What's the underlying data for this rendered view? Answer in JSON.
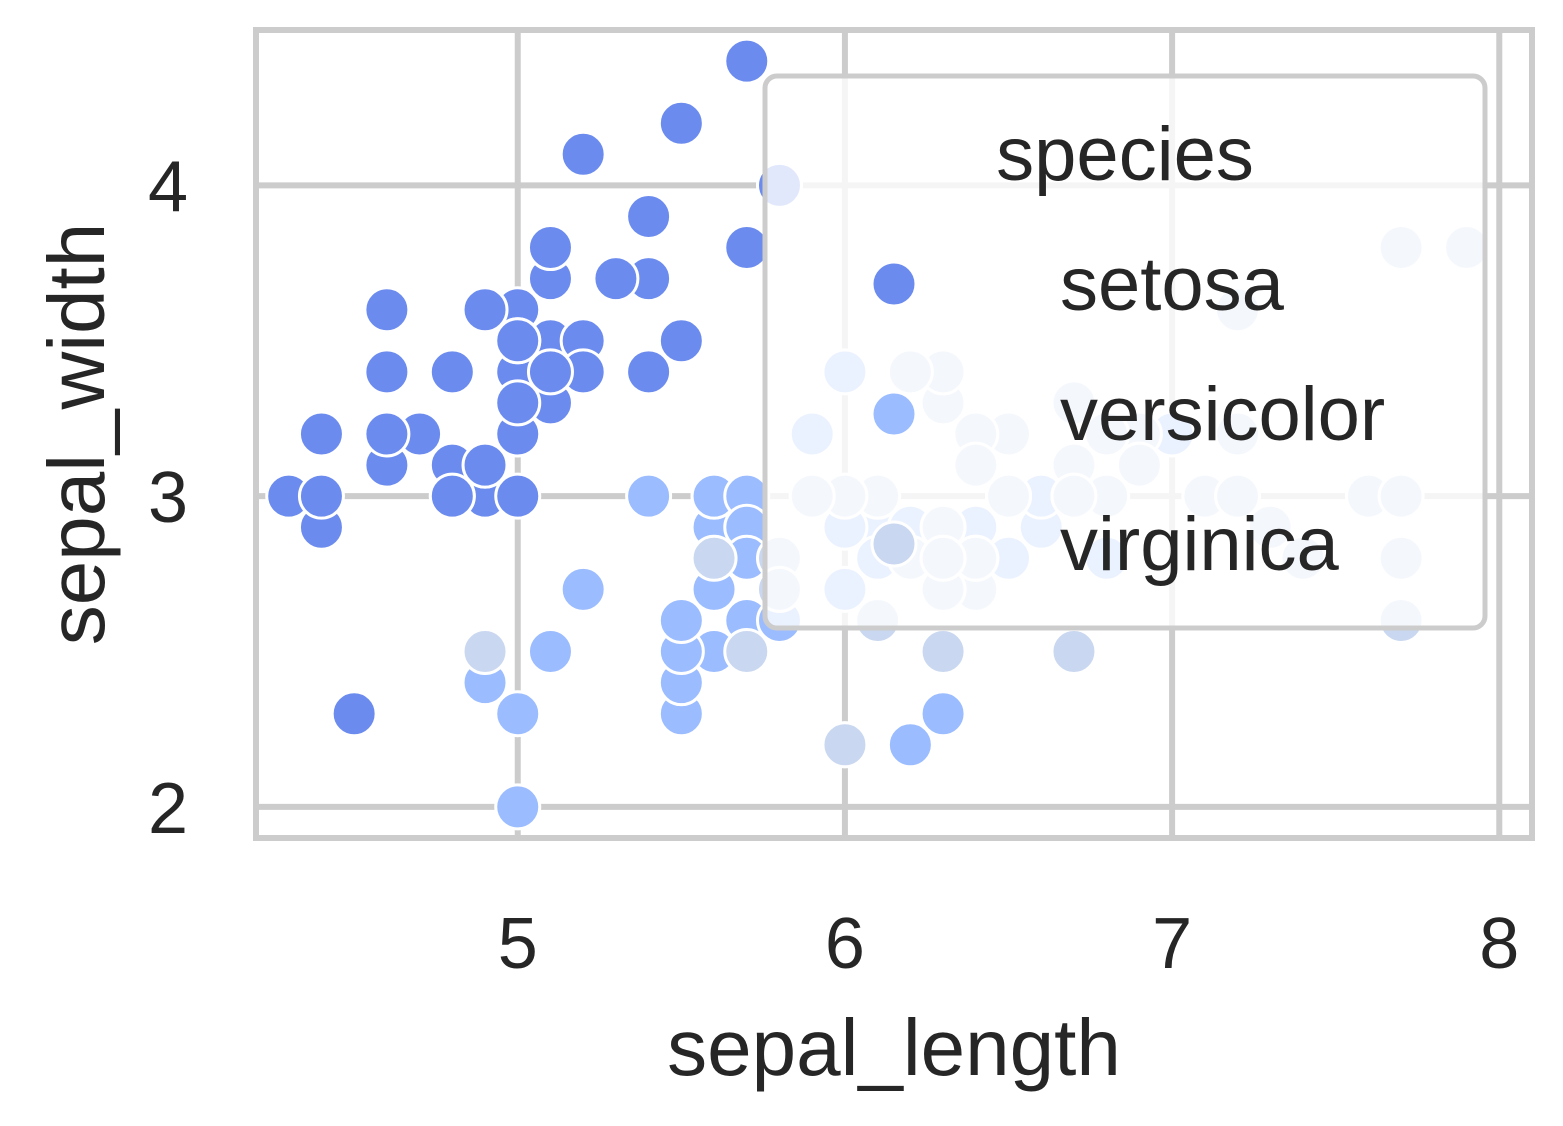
{
  "chart_data": {
    "type": "scatter",
    "xlabel": "sepal_length",
    "ylabel": "sepal_width",
    "xlim": [
      4.2,
      8.1
    ],
    "ylim": [
      1.9,
      4.5
    ],
    "xticks": [
      5,
      6,
      7,
      8
    ],
    "yticks": [
      2,
      3,
      4
    ],
    "grid": true,
    "legend": {
      "title": "species",
      "placement": "upper-right"
    },
    "series": [
      {
        "name": "setosa",
        "color": "#6b8bee",
        "points": [
          [
            5.1,
            3.5
          ],
          [
            4.9,
            3.0
          ],
          [
            4.7,
            3.2
          ],
          [
            4.6,
            3.1
          ],
          [
            5.0,
            3.6
          ],
          [
            5.4,
            3.9
          ],
          [
            4.6,
            3.4
          ],
          [
            5.0,
            3.4
          ],
          [
            4.4,
            2.9
          ],
          [
            4.9,
            3.1
          ],
          [
            5.4,
            3.7
          ],
          [
            4.8,
            3.4
          ],
          [
            4.8,
            3.0
          ],
          [
            4.3,
            3.0
          ],
          [
            5.8,
            4.0
          ],
          [
            5.7,
            4.4
          ],
          [
            5.4,
            3.9
          ],
          [
            5.1,
            3.5
          ],
          [
            5.7,
            3.8
          ],
          [
            5.1,
            3.8
          ],
          [
            5.4,
            3.4
          ],
          [
            5.1,
            3.7
          ],
          [
            4.6,
            3.6
          ],
          [
            5.1,
            3.3
          ],
          [
            4.8,
            3.4
          ],
          [
            5.0,
            3.0
          ],
          [
            5.0,
            3.4
          ],
          [
            5.2,
            3.5
          ],
          [
            5.2,
            3.4
          ],
          [
            4.7,
            3.2
          ],
          [
            4.8,
            3.1
          ],
          [
            5.4,
            3.4
          ],
          [
            5.2,
            4.1
          ],
          [
            5.5,
            4.2
          ],
          [
            4.9,
            3.1
          ],
          [
            5.0,
            3.2
          ],
          [
            5.5,
            3.5
          ],
          [
            4.9,
            3.6
          ],
          [
            4.4,
            3.0
          ],
          [
            5.1,
            3.4
          ],
          [
            5.0,
            3.5
          ],
          [
            4.5,
            2.3
          ],
          [
            4.4,
            3.2
          ],
          [
            5.0,
            3.5
          ],
          [
            5.1,
            3.8
          ],
          [
            4.8,
            3.0
          ],
          [
            5.1,
            3.8
          ],
          [
            4.6,
            3.2
          ],
          [
            5.3,
            3.7
          ],
          [
            5.0,
            3.3
          ]
        ]
      },
      {
        "name": "versicolor",
        "color": "#9bbcff",
        "points": [
          [
            7.0,
            3.2
          ],
          [
            6.4,
            3.2
          ],
          [
            6.9,
            3.1
          ],
          [
            5.5,
            2.3
          ],
          [
            6.5,
            2.8
          ],
          [
            5.7,
            2.8
          ],
          [
            6.3,
            3.3
          ],
          [
            4.9,
            2.4
          ],
          [
            6.6,
            2.9
          ],
          [
            5.2,
            2.7
          ],
          [
            5.0,
            2.0
          ],
          [
            5.9,
            3.0
          ],
          [
            6.0,
            2.2
          ],
          [
            6.1,
            2.9
          ],
          [
            5.6,
            2.9
          ],
          [
            6.7,
            3.1
          ],
          [
            5.6,
            3.0
          ],
          [
            5.8,
            2.7
          ],
          [
            6.2,
            2.2
          ],
          [
            5.6,
            2.5
          ],
          [
            5.9,
            3.2
          ],
          [
            6.1,
            2.8
          ],
          [
            6.3,
            2.5
          ],
          [
            6.1,
            2.8
          ],
          [
            6.4,
            2.9
          ],
          [
            6.6,
            3.0
          ],
          [
            6.8,
            2.8
          ],
          [
            6.7,
            3.0
          ],
          [
            6.0,
            2.9
          ],
          [
            5.7,
            2.6
          ],
          [
            5.5,
            2.4
          ],
          [
            5.5,
            2.4
          ],
          [
            5.8,
            2.7
          ],
          [
            6.0,
            2.7
          ],
          [
            5.4,
            3.0
          ],
          [
            6.0,
            3.4
          ],
          [
            6.7,
            3.1
          ],
          [
            6.3,
            2.3
          ],
          [
            5.6,
            3.0
          ],
          [
            5.5,
            2.5
          ],
          [
            5.5,
            2.6
          ],
          [
            6.1,
            3.0
          ],
          [
            5.8,
            2.6
          ],
          [
            5.0,
            2.3
          ],
          [
            5.6,
            2.7
          ],
          [
            5.7,
            3.0
          ],
          [
            5.7,
            2.9
          ],
          [
            6.2,
            2.9
          ],
          [
            5.1,
            2.5
          ],
          [
            5.7,
            2.8
          ]
        ]
      },
      {
        "name": "virginica",
        "color": "#c9d7f0",
        "points": [
          [
            6.3,
            3.3
          ],
          [
            5.8,
            2.7
          ],
          [
            7.1,
            3.0
          ],
          [
            6.3,
            2.9
          ],
          [
            6.5,
            3.0
          ],
          [
            7.6,
            3.0
          ],
          [
            4.9,
            2.5
          ],
          [
            7.3,
            2.9
          ],
          [
            6.7,
            2.5
          ],
          [
            7.2,
            3.6
          ],
          [
            6.5,
            3.2
          ],
          [
            6.4,
            2.7
          ],
          [
            6.8,
            3.0
          ],
          [
            5.7,
            2.5
          ],
          [
            5.8,
            2.8
          ],
          [
            6.4,
            3.2
          ],
          [
            6.5,
            3.0
          ],
          [
            7.7,
            3.8
          ],
          [
            7.7,
            2.6
          ],
          [
            6.0,
            2.2
          ],
          [
            6.9,
            3.2
          ],
          [
            5.6,
            2.8
          ],
          [
            7.7,
            2.8
          ],
          [
            6.3,
            2.7
          ],
          [
            6.7,
            3.3
          ],
          [
            7.2,
            3.2
          ],
          [
            6.2,
            2.8
          ],
          [
            6.1,
            3.0
          ],
          [
            6.4,
            2.8
          ],
          [
            7.2,
            3.0
          ],
          [
            7.4,
            2.8
          ],
          [
            7.9,
            3.8
          ],
          [
            6.4,
            2.8
          ],
          [
            6.3,
            2.8
          ],
          [
            6.1,
            2.6
          ],
          [
            7.7,
            3.0
          ],
          [
            6.3,
            3.4
          ],
          [
            6.4,
            3.1
          ],
          [
            6.0,
            3.0
          ],
          [
            6.9,
            3.1
          ],
          [
            6.7,
            3.1
          ],
          [
            6.9,
            3.1
          ],
          [
            5.8,
            2.7
          ],
          [
            6.8,
            3.2
          ],
          [
            6.7,
            3.3
          ],
          [
            6.7,
            3.0
          ],
          [
            6.3,
            2.5
          ],
          [
            6.5,
            3.0
          ],
          [
            6.2,
            3.4
          ],
          [
            5.9,
            3.0
          ]
        ]
      }
    ]
  }
}
